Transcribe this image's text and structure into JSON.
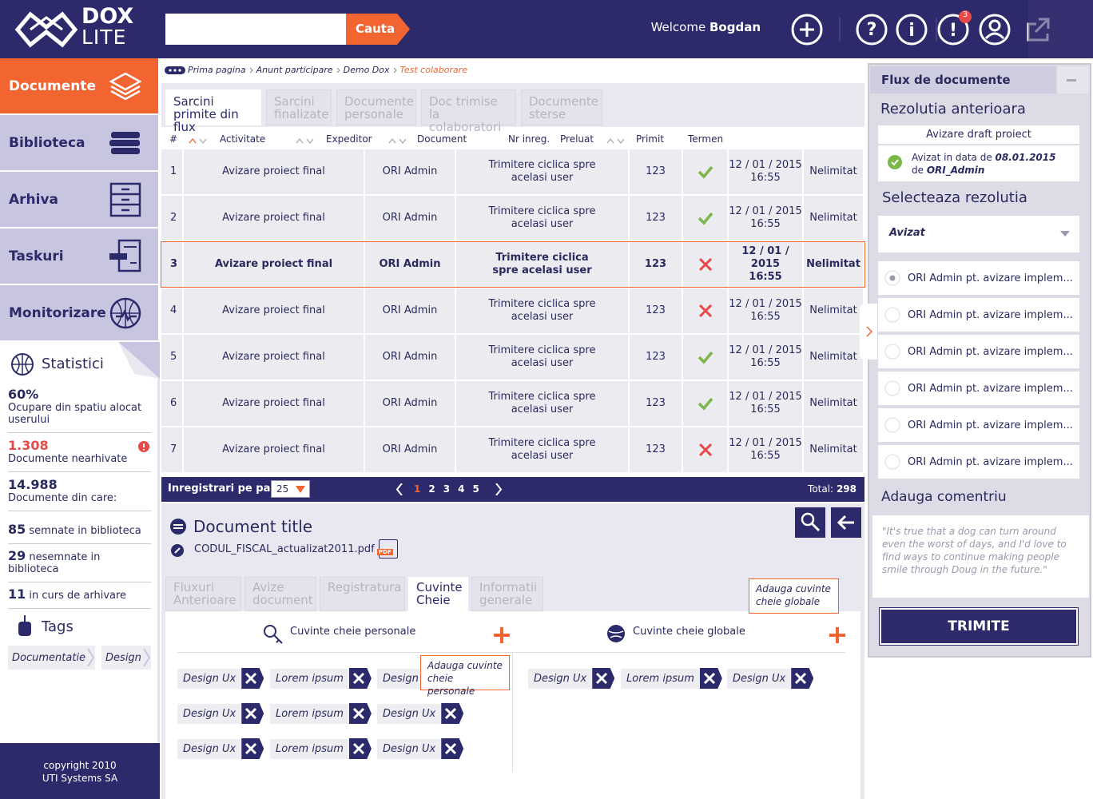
{
  "header": {
    "logo_top": "DOX",
    "logo_bottom": "LITE",
    "search_button": "Cauta",
    "welcome": "Welcome",
    "user": "Bogdan",
    "badge": "3"
  },
  "sidebar": {
    "nav": [
      "Documente",
      "Biblioteca",
      "Arhiva",
      "Taskuri",
      "Monitorizare"
    ],
    "stats_title": "Statistici",
    "stats": [
      {
        "value": "60%",
        "label": "Ocupare din spatiu alocat userului"
      },
      {
        "value": "1.308",
        "label": "Documente nearhivate"
      },
      {
        "value": "14.988",
        "label": "Documente din care:"
      },
      {
        "value": "85",
        "label": "semnate in biblioteca"
      },
      {
        "value": "29",
        "label": "nesemnate in biblioteca"
      },
      {
        "value": "11",
        "label": "in curs de arhivare"
      }
    ],
    "tags_title": "Tags",
    "tags": [
      "Documentatie",
      "Design"
    ],
    "footer": [
      "copyright 2010",
      "UTI Systems SA"
    ]
  },
  "breadcrumb": [
    "Prima pagina",
    "Anunt participare",
    "Demo Dox",
    "Test colaborare"
  ],
  "tabs": [
    "Sarcini primite din flux",
    "Sarcini finalizate",
    "Documente personale",
    "Doc trimise la colaboratori",
    "Documente sterse"
  ],
  "table": {
    "columns": [
      "#",
      "Activitate",
      "Expeditor",
      "Document",
      "Nr inreg.",
      "Preluat",
      "Primit",
      "Termen"
    ],
    "rows": [
      {
        "n": "1",
        "activity": "Avizare proiect final",
        "sender": "ORI Admin",
        "document": "Trimitere ciclica spre acelasi user",
        "nr": "123",
        "accepted": true,
        "date": "12 / 01 / 2015",
        "time": "16:55",
        "term": "Nelimitat"
      },
      {
        "n": "2",
        "activity": "Avizare proiect final",
        "sender": "ORI Admin",
        "document": "Trimitere ciclica spre acelasi user",
        "nr": "123",
        "accepted": true,
        "date": "12 / 01 / 2015",
        "time": "16:55",
        "term": "Nelimitat"
      },
      {
        "n": "3",
        "activity": "Avizare proiect final",
        "sender": "ORI Admin",
        "document": "Trimitere ciclica spre acelasi user",
        "nr": "123",
        "accepted": false,
        "date": "12 / 01 / 2015",
        "time": "16:55",
        "term": "Nelimitat",
        "selected": true
      },
      {
        "n": "4",
        "activity": "Avizare proiect final",
        "sender": "ORI Admin",
        "document": "Trimitere ciclica spre acelasi user",
        "nr": "123",
        "accepted": false,
        "date": "12 / 01 / 2015",
        "time": "16:55",
        "term": "Nelimitat"
      },
      {
        "n": "5",
        "activity": "Avizare proiect final",
        "sender": "ORI Admin",
        "document": "Trimitere ciclica spre acelasi user",
        "nr": "123",
        "accepted": true,
        "date": "12 / 01 / 2015",
        "time": "16:55",
        "term": "Nelimitat"
      },
      {
        "n": "6",
        "activity": "Avizare proiect final",
        "sender": "ORI Admin",
        "document": "Trimitere ciclica spre acelasi user",
        "nr": "123",
        "accepted": true,
        "date": "12 / 01 / 2015",
        "time": "16:55",
        "term": "Nelimitat"
      },
      {
        "n": "7",
        "activity": "Avizare proiect final",
        "sender": "ORI Admin",
        "document": "Trimitere ciclica spre acelasi user",
        "nr": "123",
        "accepted": false,
        "date": "12 / 01 / 2015",
        "time": "16:55",
        "term": "Nelimitat"
      }
    ]
  },
  "pagination": {
    "label": "Inregistrari pe pagina",
    "per_page": "25",
    "pages": [
      "1",
      "2",
      "3",
      "4",
      "5"
    ],
    "total_label": "Total:",
    "total": "298"
  },
  "document": {
    "title": "Document title",
    "file": "CODUL_FISCAL_actualizat2011.pdf",
    "file_type": "PDF",
    "tabs": [
      "Fluxuri Anterioare",
      "Avize document",
      "Registratura",
      "Cuvinte Cheie",
      "Informatii generale"
    ],
    "personal_title": "Cuvinte cheie personale",
    "global_title": "Cuvinte cheie globale",
    "personal_tooltip": "Adauga cuvinte cheie personale",
    "global_tooltip": "Adauga cuvinte cheie globale",
    "personal_tags": [
      "Design Ux",
      "Lorem ipsum",
      "Design Ux",
      "Design Ux",
      "Lorem ipsum",
      "Design Ux",
      "Design Ux",
      "Lorem ipsum",
      "Design Ux"
    ],
    "global_tags": [
      "Design Ux",
      "Lorem ipsum",
      "Design Ux"
    ]
  },
  "panel": {
    "title": "Flux de documente",
    "previous_title": "Rezolutia anterioara",
    "card_title": "Avizare draft proiect",
    "card_text": "Avizat in data de",
    "card_date": "08.01.2015",
    "card_by": "de",
    "card_user": "ORI_Admin",
    "select_title": "Selecteaza rezolutia",
    "select_value": "Avizat",
    "options": [
      "ORI Admin pt. avizare implem...",
      "ORI Admin pt. avizare implem...",
      "ORI Admin pt. avizare implem...",
      "ORI Admin pt. avizare implem...",
      "ORI Admin pt. avizare implem...",
      "ORI Admin pt. avizare implem..."
    ],
    "comment_title": "Adauga comentriu",
    "comment": "\"It's true that a dog can turn around even the worst of days, and I'd love to find ways to continue making people smile through Doug in the future.\"",
    "button": "TRIMITE"
  }
}
